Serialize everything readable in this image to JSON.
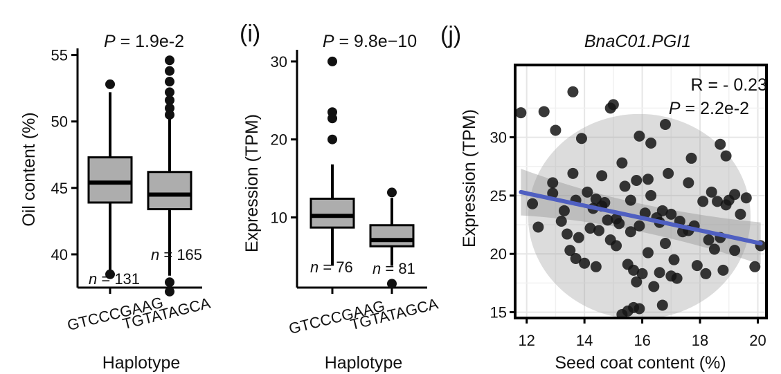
{
  "panels": {
    "h": {
      "label": ""
    },
    "i": {
      "label": "(i)"
    },
    "j": {
      "label": "(j)"
    }
  },
  "chart_data": [
    {
      "type": "box",
      "title_p": "P",
      "title_rest": " = 1.9e-2",
      "xlabel": "Haplotype",
      "ylabel": "Oil content (%)",
      "ylim": [
        37.5,
        55.5
      ],
      "yticks": [
        40,
        45,
        50,
        55
      ],
      "categories": [
        "GTCCCGAAG",
        "TGTATAGCA"
      ],
      "boxes": [
        {
          "q1": 43.9,
          "median": 45.4,
          "q3": 47.3,
          "whisker_low": 38.5,
          "whisker_high": 52.2,
          "outliers": [
            52.8,
            38.5
          ]
        },
        {
          "q1": 43.4,
          "median": 44.5,
          "q3": 46.2,
          "whisker_low": 38.4,
          "whisker_high": 50.3,
          "outliers": [
            54.6,
            53.8,
            53.0,
            52.2,
            51.6,
            51.0,
            50.5,
            37.9,
            37.2
          ]
        }
      ],
      "counts": [
        {
          "prefix": "n",
          "text": " = 131"
        },
        {
          "prefix": "n",
          "text": " = 165"
        }
      ]
    },
    {
      "type": "box",
      "title_p": "P",
      "title_rest": " = 9.8e−10",
      "xlabel": "Haplotype",
      "ylabel": "Expression (TPM)",
      "ylim": [
        1,
        31.5
      ],
      "yticks": [
        10,
        20,
        30
      ],
      "categories": [
        "GTCCCGAAG",
        "TGTATAGCA"
      ],
      "boxes": [
        {
          "q1": 8.7,
          "median": 10.2,
          "q3": 12.4,
          "whisker_low": 3.8,
          "whisker_high": 16.8,
          "outliers": [
            30.0,
            23.5,
            22.7,
            20.0
          ]
        },
        {
          "q1": 6.3,
          "median": 7.1,
          "q3": 9.0,
          "whisker_low": 3.8,
          "whisker_high": 12.5,
          "outliers": [
            13.2,
            1.5
          ]
        }
      ],
      "counts": [
        {
          "prefix": "n",
          "text": " = 76"
        },
        {
          "prefix": "n",
          "text": " = 81"
        }
      ]
    },
    {
      "type": "scatter",
      "title": "BnaC01.PGI1",
      "xlabel": "Seed coat content (%)",
      "ylabel": "Expression (TPM)",
      "xlim": [
        11.6,
        20.3
      ],
      "ylim": [
        14.5,
        36.2
      ],
      "xticks": [
        12,
        14,
        16,
        18,
        20
      ],
      "yticks": [
        15,
        20,
        25,
        30
      ],
      "annot_r": "R = - 0.23",
      "annot_p": "P",
      "annot_p_rest": " = 2.2e-2",
      "fit": {
        "x": [
          11.8,
          20.1
        ],
        "y": [
          25.3,
          20.9
        ]
      },
      "fit_ci_half_width": [
        2.0,
        1.2,
        1.8
      ],
      "ellipse": {
        "cx": 15.9,
        "cy": 23.2,
        "rx": 3.85,
        "ry": 8.8
      },
      "points": [
        [
          11.8,
          32.1
        ],
        [
          12.6,
          32.2
        ],
        [
          13.0,
          30.6
        ],
        [
          13.6,
          33.9
        ],
        [
          13.9,
          29.9
        ],
        [
          14.9,
          32.5
        ],
        [
          15.0,
          32.8
        ],
        [
          15.9,
          30.1
        ],
        [
          16.3,
          29.5
        ],
        [
          16.8,
          31.1
        ],
        [
          17.7,
          28.2
        ],
        [
          18.7,
          29.4
        ],
        [
          18.9,
          28.4
        ],
        [
          12.2,
          24.3
        ],
        [
          12.4,
          22.3
        ],
        [
          12.9,
          25.2
        ],
        [
          13.2,
          22.8
        ],
        [
          13.4,
          21.7
        ],
        [
          13.7,
          24.6
        ],
        [
          13.6,
          26.9
        ],
        [
          14.1,
          25.3
        ],
        [
          14.3,
          23.9
        ],
        [
          14.4,
          24.7
        ],
        [
          14.6,
          26.7
        ],
        [
          14.7,
          24.4
        ],
        [
          14.2,
          22.2
        ],
        [
          14.5,
          22.0
        ],
        [
          14.9,
          21.2
        ],
        [
          15.2,
          22.6
        ],
        [
          15.3,
          27.8
        ],
        [
          15.4,
          25.8
        ],
        [
          15.6,
          24.6
        ],
        [
          15.8,
          26.3
        ],
        [
          15.9,
          22.4
        ],
        [
          16.2,
          26.4
        ],
        [
          16.3,
          25.0
        ],
        [
          16.5,
          23.1
        ],
        [
          16.7,
          23.7
        ],
        [
          16.9,
          26.9
        ],
        [
          17.0,
          23.4
        ],
        [
          17.3,
          22.8
        ],
        [
          17.6,
          26.1
        ],
        [
          17.8,
          22.4
        ],
        [
          18.1,
          24.5
        ],
        [
          18.4,
          25.3
        ],
        [
          18.6,
          24.5
        ],
        [
          18.9,
          24.2
        ],
        [
          19.0,
          24.6
        ],
        [
          19.2,
          25.1
        ],
        [
          13.5,
          20.3
        ],
        [
          13.7,
          19.6
        ],
        [
          14.0,
          19.2
        ],
        [
          15.1,
          20.7
        ],
        [
          15.5,
          19.1
        ],
        [
          15.7,
          18.6
        ],
        [
          15.8,
          17.6
        ],
        [
          16.0,
          18.3
        ],
        [
          16.4,
          17.2
        ],
        [
          16.6,
          18.4
        ],
        [
          16.8,
          20.9
        ],
        [
          17.0,
          18.1
        ],
        [
          17.2,
          17.9
        ],
        [
          17.6,
          22.0
        ],
        [
          17.9,
          19.0
        ],
        [
          18.2,
          18.3
        ],
        [
          18.5,
          20.4
        ],
        [
          18.7,
          21.4
        ],
        [
          19.2,
          20.3
        ],
        [
          19.6,
          24.8
        ],
        [
          19.9,
          18.9
        ],
        [
          20.1,
          20.7
        ],
        [
          15.3,
          14.8
        ],
        [
          15.5,
          15.1
        ],
        [
          15.7,
          15.4
        ],
        [
          15.9,
          15.3
        ],
        [
          16.7,
          15.6
        ],
        [
          14.6,
          24.1
        ],
        [
          15.1,
          23.0
        ],
        [
          16.1,
          23.5
        ],
        [
          17.4,
          21.9
        ],
        [
          18.3,
          21.2
        ],
        [
          19.4,
          23.4
        ],
        [
          16.6,
          22.7
        ],
        [
          15.6,
          21.9
        ],
        [
          14.8,
          22.9
        ],
        [
          13.8,
          21.4
        ],
        [
          12.9,
          26.1
        ],
        [
          13.3,
          23.7
        ],
        [
          17.1,
          19.5
        ],
        [
          18.8,
          18.6
        ],
        [
          16.2,
          20.1
        ],
        [
          14.4,
          18.9
        ]
      ]
    }
  ]
}
